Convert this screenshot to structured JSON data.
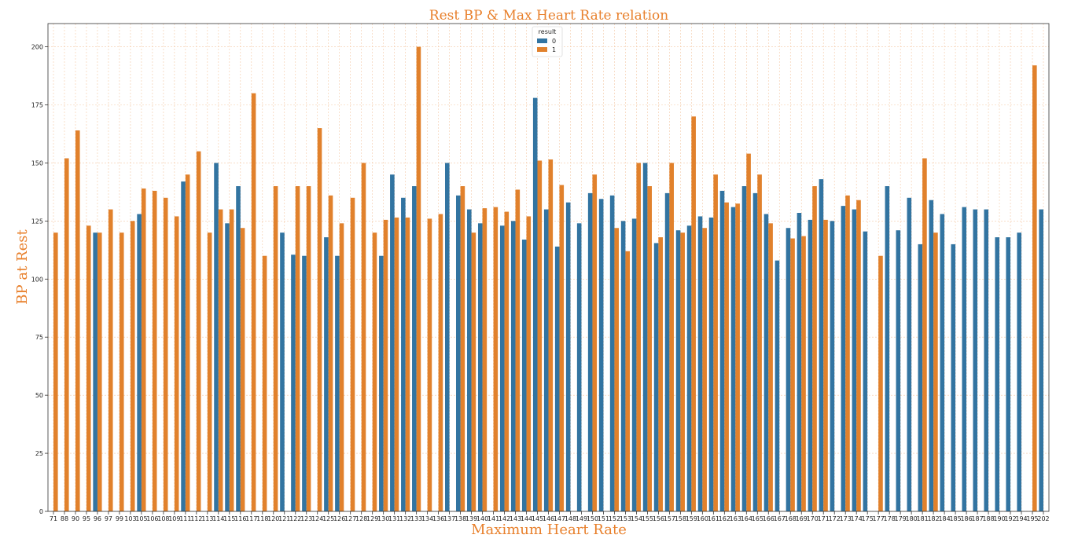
{
  "chart_data": {
    "type": "bar",
    "title": "Rest BP & Max Heart Rate relation",
    "xlabel": "Maximum Heart Rate",
    "ylabel": "BP at Rest",
    "ylim": [
      0,
      210
    ],
    "yticks": [
      0,
      25,
      50,
      75,
      100,
      125,
      150,
      175,
      200
    ],
    "grid": true,
    "legend": {
      "title": "result",
      "placement": "top-center"
    },
    "categories": [
      "71",
      "88",
      "90",
      "95",
      "96",
      "97",
      "99",
      "103",
      "105",
      "106",
      "108",
      "109",
      "111",
      "112",
      "113",
      "114",
      "115",
      "116",
      "117",
      "118",
      "120",
      "121",
      "122",
      "123",
      "124",
      "125",
      "126",
      "127",
      "128",
      "129",
      "130",
      "131",
      "132",
      "133",
      "134",
      "136",
      "137",
      "138",
      "139",
      "140",
      "141",
      "142",
      "143",
      "144",
      "145",
      "146",
      "147",
      "148",
      "149",
      "150",
      "151",
      "152",
      "153",
      "154",
      "155",
      "156",
      "157",
      "158",
      "159",
      "160",
      "161",
      "162",
      "163",
      "164",
      "165",
      "166",
      "167",
      "168",
      "169",
      "170",
      "171",
      "172",
      "173",
      "174",
      "175",
      "177",
      "178",
      "179",
      "180",
      "181",
      "182",
      "184",
      "185",
      "186",
      "187",
      "188",
      "190",
      "192",
      "194",
      "195",
      "202"
    ],
    "series": [
      {
        "name": "0",
        "color": "#3274a1",
        "values": [
          null,
          null,
          null,
          null,
          120,
          null,
          null,
          null,
          128,
          null,
          null,
          null,
          142,
          null,
          null,
          150,
          124,
          140,
          null,
          null,
          null,
          120,
          110.5,
          110,
          null,
          118,
          110,
          null,
          null,
          null,
          110,
          145,
          135,
          140,
          null,
          null,
          150,
          136,
          130,
          124,
          null,
          123,
          125,
          117,
          178,
          130,
          114,
          133,
          124,
          137,
          134.5,
          136,
          125,
          126,
          150,
          115.5,
          137,
          121,
          123,
          127,
          126.5,
          138,
          131,
          140,
          137,
          128,
          108,
          122,
          128.5,
          125.5,
          143,
          125,
          131.5,
          130,
          120.5,
          null,
          140,
          121,
          135,
          115,
          134,
          128,
          115,
          131,
          130,
          130,
          118,
          118,
          120,
          null,
          130
        ]
      },
      {
        "name": "1",
        "color": "#e1812c",
        "values": [
          120,
          152,
          164,
          123,
          120,
          130,
          120,
          125,
          139,
          138,
          135,
          127,
          145,
          155,
          120,
          130,
          130,
          122,
          180,
          110,
          140,
          null,
          140,
          140,
          165,
          136,
          124,
          135,
          150,
          120,
          125.5,
          126.5,
          126.5,
          200,
          126,
          128,
          null,
          140,
          120,
          130.5,
          131,
          129,
          138.5,
          127,
          151,
          151.5,
          140.5,
          null,
          null,
          145,
          null,
          122,
          112,
          150,
          140,
          118,
          150,
          120,
          170,
          122,
          145,
          133,
          132.5,
          154,
          145,
          124,
          null,
          117.5,
          118.5,
          140,
          125.5,
          null,
          136,
          134,
          null,
          110,
          null,
          null,
          null,
          152,
          120,
          null,
          null,
          null,
          null,
          null,
          null,
          null,
          null,
          192,
          null
        ]
      }
    ]
  }
}
